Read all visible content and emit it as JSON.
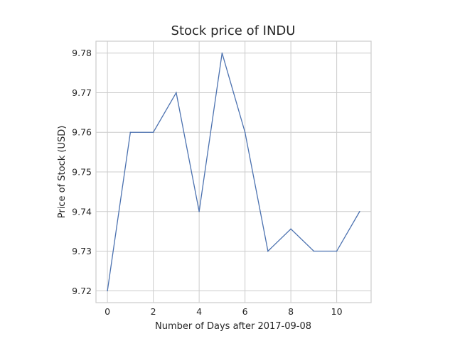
{
  "chart_data": {
    "type": "line",
    "title": "Stock price of INDU",
    "xlabel": "Number of Days after 2017-09-08",
    "ylabel": "Price of Stock (USD)",
    "x": [
      0,
      1,
      2,
      3,
      4,
      5,
      6,
      7,
      8,
      9,
      10,
      11
    ],
    "series": [
      {
        "values": [
          9.72,
          9.76,
          9.76,
          9.77,
          9.74,
          9.78,
          9.76,
          9.73,
          9.7356,
          9.73,
          9.73,
          9.74
        ]
      }
    ],
    "xlim": [
      -0.5,
      11.5
    ],
    "ylim": [
      9.717,
      9.783
    ],
    "xticks": [
      0,
      2,
      4,
      6,
      8,
      10
    ],
    "xtick_labels": [
      "0",
      "2",
      "4",
      "6",
      "8",
      "10"
    ],
    "yticks": [
      9.72,
      9.73,
      9.74,
      9.75,
      9.76,
      9.77,
      9.78
    ],
    "ytick_labels": [
      "9.72",
      "9.73",
      "9.74",
      "9.75",
      "9.76",
      "9.77",
      "9.78"
    ],
    "grid": true,
    "line_color": "#4c72b0",
    "grid_color": "#cccccc"
  }
}
